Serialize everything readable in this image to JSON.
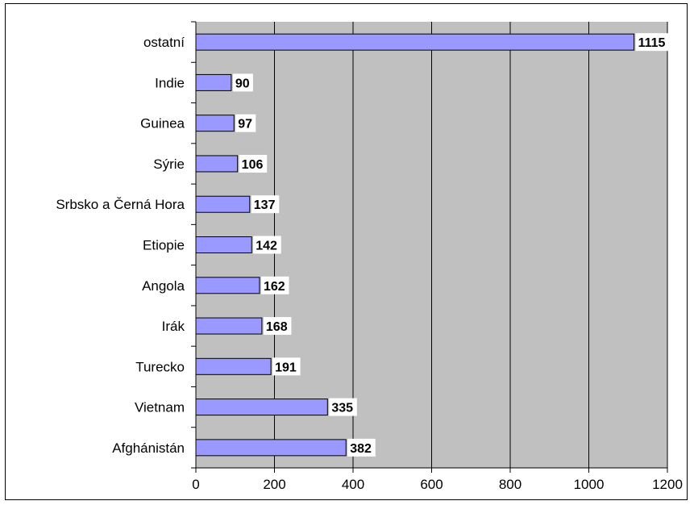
{
  "chart_data": {
    "type": "bar",
    "orientation": "horizontal",
    "title": "",
    "xlabel": "",
    "ylabel": "",
    "categories": [
      "ostatní",
      "Indie",
      "Guinea",
      "Sýrie",
      "Srbsko a Černá Hora",
      "Etiopie",
      "Angola",
      "Irák",
      "Turecko",
      "Vietnam",
      "Afghánistán"
    ],
    "values": [
      1115,
      90,
      97,
      106,
      137,
      142,
      162,
      168,
      191,
      335,
      382
    ],
    "xlim": [
      0,
      1200
    ],
    "xticks": [
      0,
      200,
      400,
      600,
      800,
      1000,
      1200
    ],
    "grid": true,
    "legend": "none",
    "colors": {
      "bar_fill": "#9999ff",
      "bar_stroke": "#000000",
      "plot_background": "#c0c0c0",
      "label_background": "#ffffff"
    }
  }
}
